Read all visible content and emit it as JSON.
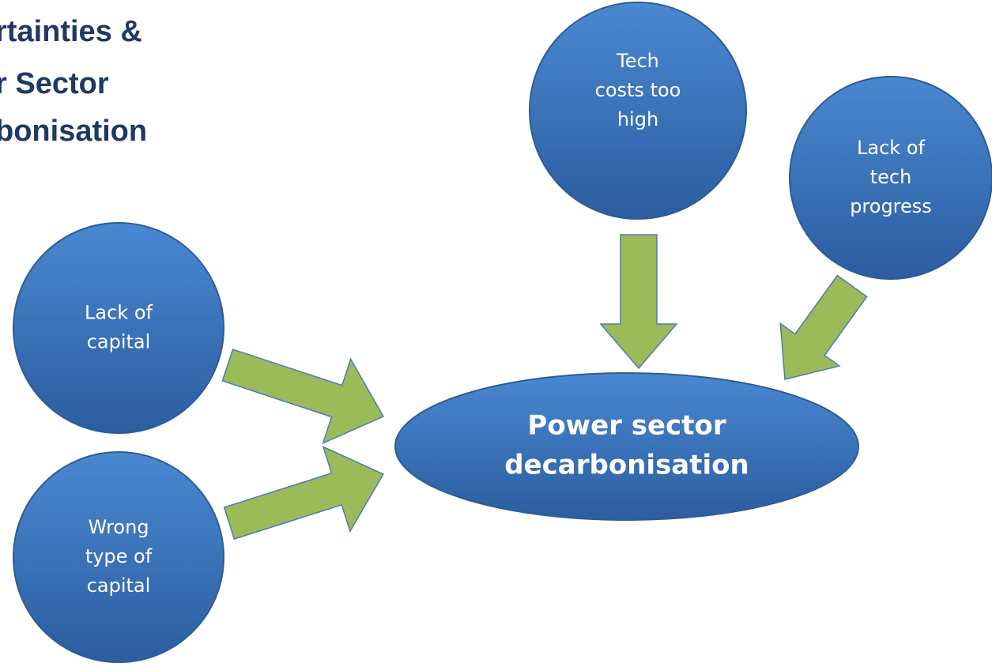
{
  "title": {
    "lines": [
      "rtainties &",
      "r Sector",
      "bonisation"
    ]
  },
  "nodes": [
    {
      "label": [
        "Lack of",
        "capital"
      ]
    },
    {
      "label": [
        "Wrong",
        "type of",
        "capital"
      ]
    },
    {
      "label": [
        "Tech",
        "costs too",
        "high"
      ]
    },
    {
      "label": [
        "Lack of",
        "tech",
        "progress"
      ]
    },
    {
      "label": [
        "Power sector",
        "decarbonisation"
      ]
    }
  ]
}
